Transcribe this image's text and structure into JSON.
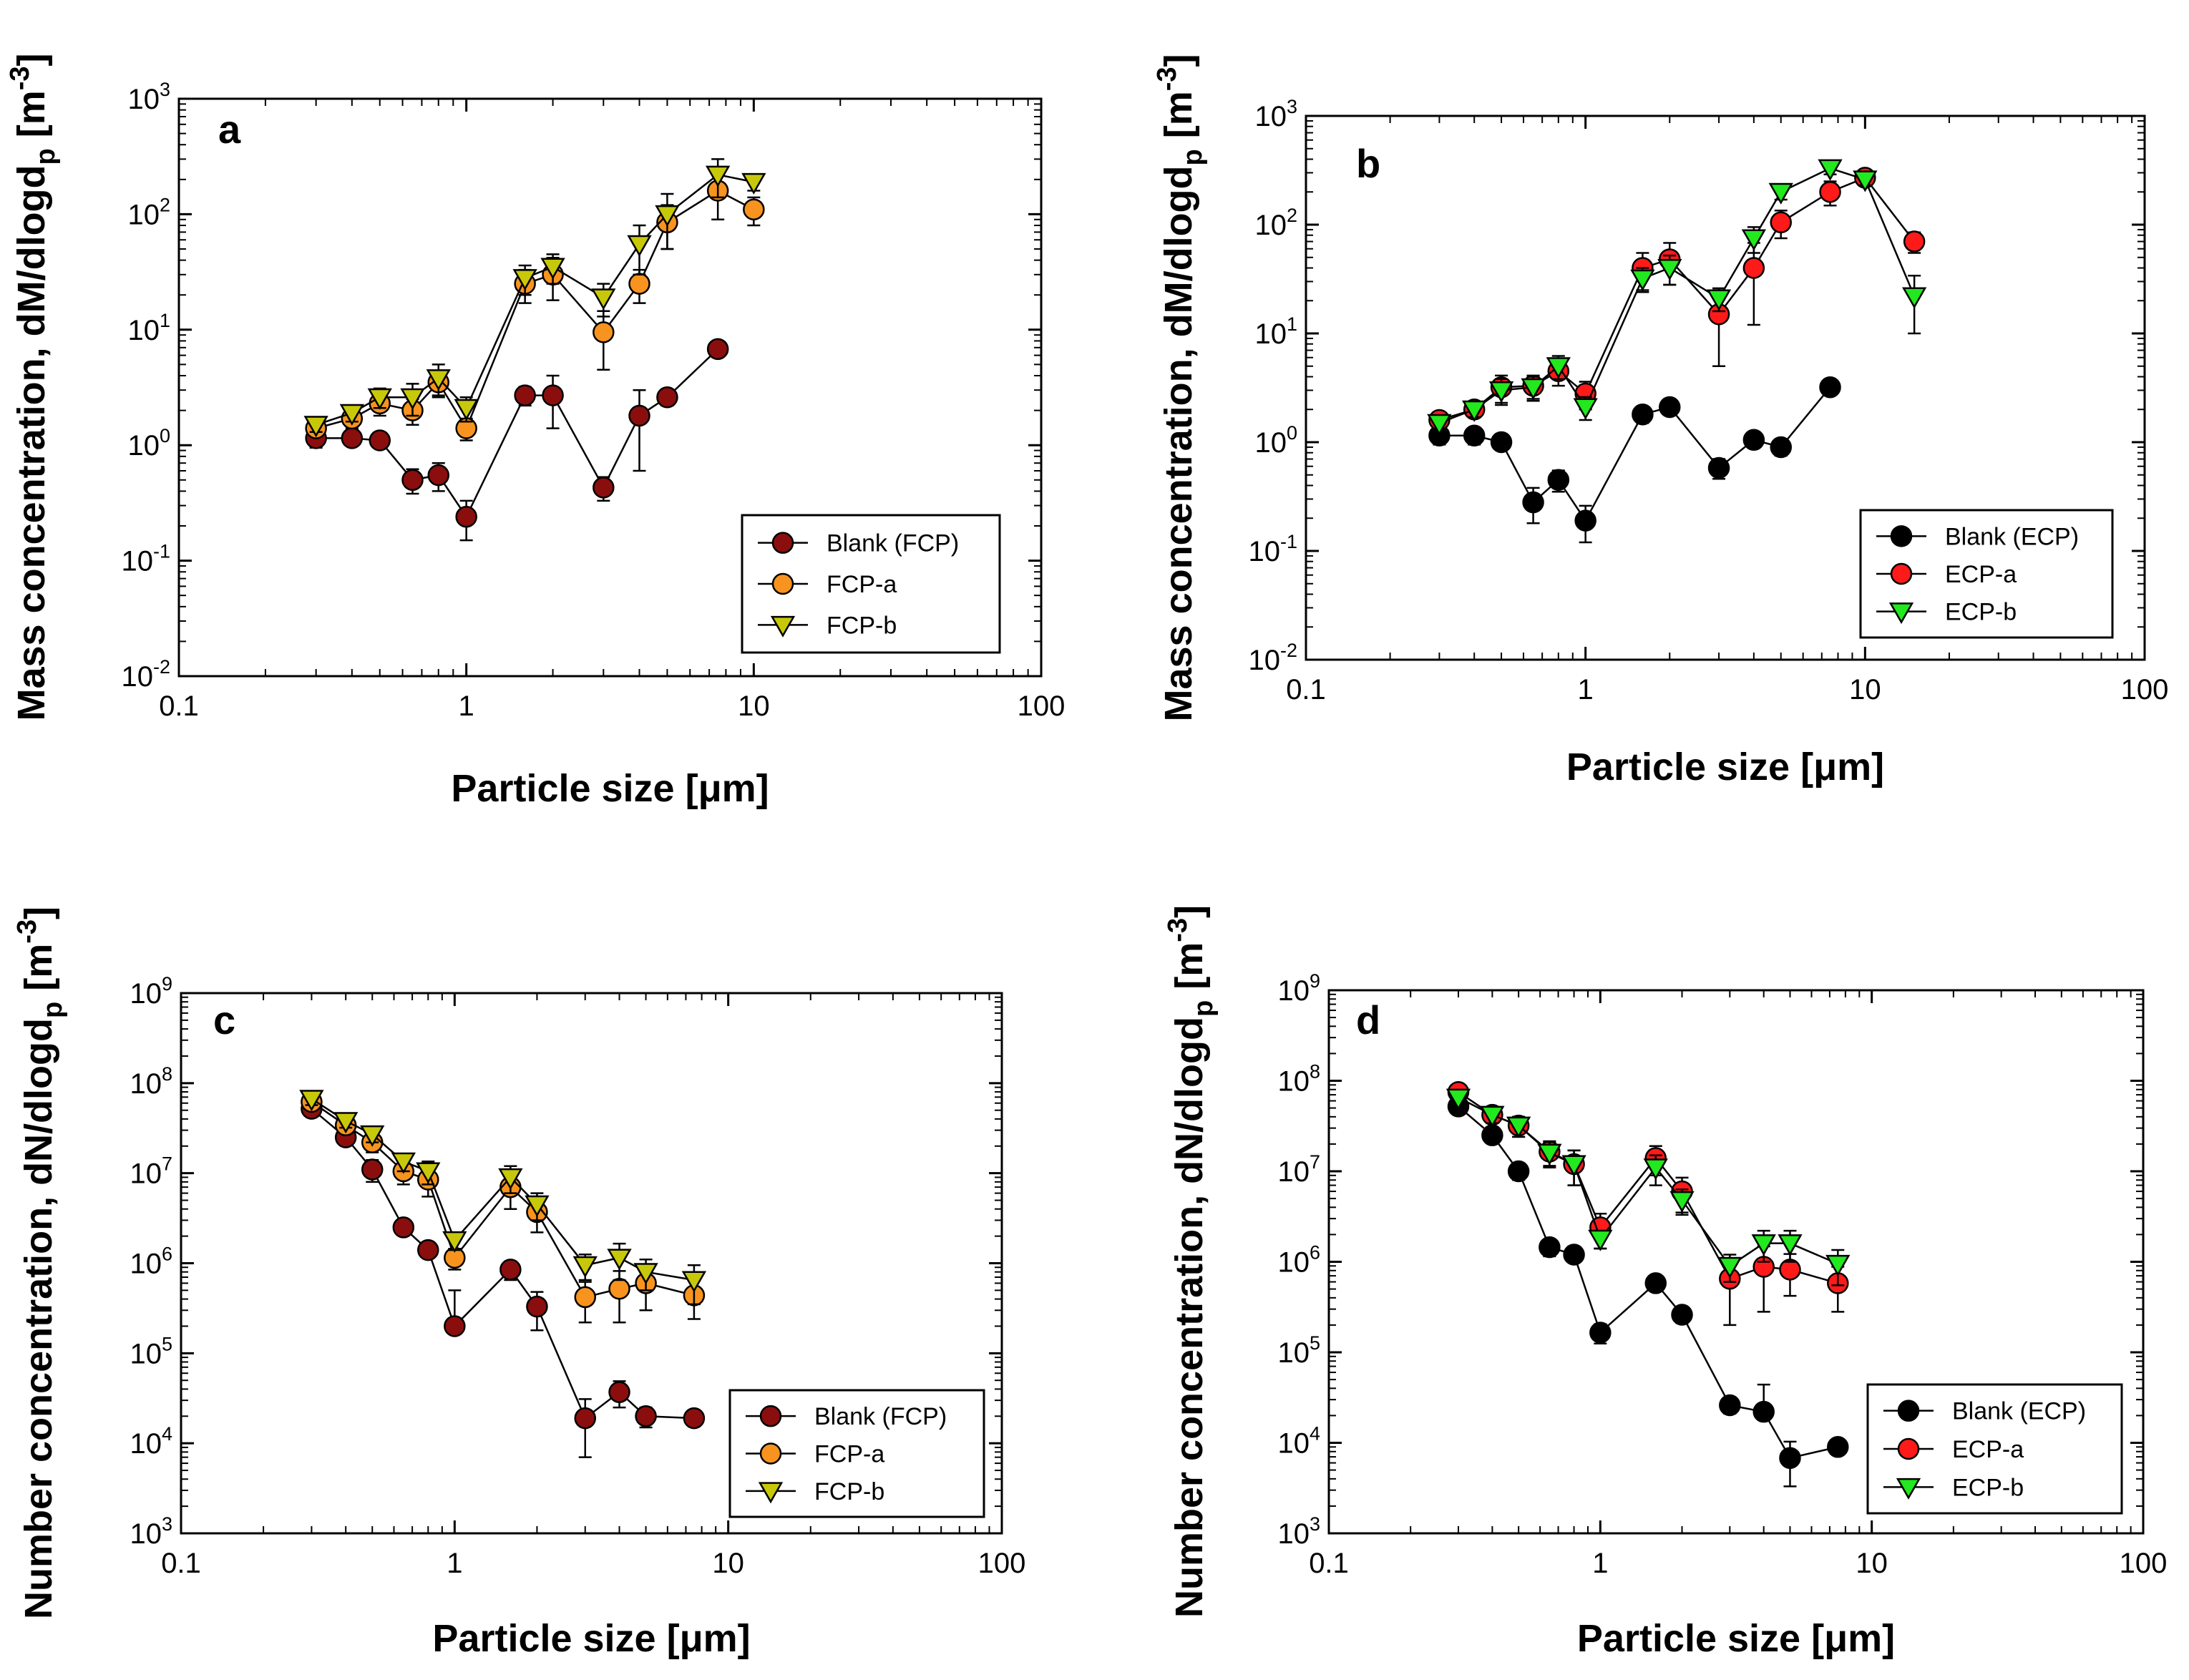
{
  "colors": {
    "blank_fcp": "#8b0e0e",
    "fcp_a": "#f7931e",
    "fcp_b": "#c8c80a",
    "blank_ecp": "#000000",
    "ecp_a": "#ff1a1a",
    "ecp_b": "#22e81e"
  },
  "chart_data": [
    {
      "panel": "a",
      "type": "scatter",
      "xscale": "log",
      "yscale": "log",
      "xlim": [
        0.1,
        100
      ],
      "ylim": [
        0.01,
        1000
      ],
      "xlabel": "Particle size [μm]",
      "ylabel": {
        "prefix": "Mass concentration, dM/dlogd",
        "sub": "p",
        "unit_open": " [m",
        "unit_sup": "-3",
        "unit_close": "]"
      },
      "x_ticks": [
        "0.1",
        "1",
        "10",
        "100"
      ],
      "y_ticks": [
        {
          "base": "10",
          "exp": "-2"
        },
        {
          "base": "10",
          "exp": "-1"
        },
        {
          "base": "10",
          "exp": "0"
        },
        {
          "base": "10",
          "exp": "1"
        },
        {
          "base": "10",
          "exp": "2"
        },
        {
          "base": "10",
          "exp": "3"
        }
      ],
      "legend_position": "bottom-right",
      "series": [
        {
          "name": "Blank (FCP)",
          "marker": "circle",
          "color_key": "blank_fcp",
          "x": [
            0.3,
            0.4,
            0.5,
            0.65,
            0.8,
            1.0,
            1.6,
            2.0,
            3.0,
            4.0,
            5.0,
            7.5
          ],
          "y": [
            1.15,
            1.15,
            1.1,
            0.5,
            0.55,
            0.24,
            2.7,
            2.7,
            0.43,
            1.8,
            2.6,
            6.8
          ],
          "err": [
            0.2,
            0.15,
            0.15,
            0.12,
            0.15,
            0.09,
            0.5,
            1.3,
            0.1,
            1.2,
            0.4,
            1.0
          ]
        },
        {
          "name": "FCP-a",
          "marker": "circle",
          "color_key": "fcp_a",
          "x": [
            0.3,
            0.4,
            0.5,
            0.65,
            0.8,
            1.0,
            1.6,
            2.0,
            3.0,
            4.0,
            5.0,
            7.5,
            10.0
          ],
          "y": [
            1.4,
            1.7,
            2.3,
            2.0,
            3.5,
            1.4,
            25,
            30,
            9.5,
            25,
            85,
            160,
            110
          ],
          "err": [
            0.2,
            0.3,
            0.5,
            0.5,
            0.8,
            0.3,
            8,
            12,
            5,
            8,
            35,
            70,
            30
          ]
        },
        {
          "name": "FCP-b",
          "marker": "triangle-down",
          "color_key": "fcp_b",
          "x": [
            0.3,
            0.4,
            0.5,
            0.65,
            0.8,
            1.0,
            1.6,
            2.0,
            3.0,
            4.0,
            5.0,
            7.5,
            10.0
          ],
          "y": [
            1.5,
            1.9,
            2.6,
            2.6,
            3.8,
            2.1,
            28,
            35,
            19,
            55,
            100,
            220,
            190
          ],
          "err": [
            0.2,
            0.3,
            0.5,
            0.8,
            1.2,
            0.5,
            8,
            10,
            6,
            25,
            50,
            80,
            30
          ]
        }
      ]
    },
    {
      "panel": "b",
      "type": "scatter",
      "xscale": "log",
      "yscale": "log",
      "xlim": [
        0.1,
        100
      ],
      "ylim": [
        0.01,
        1000
      ],
      "xlabel": "Particle size [μm]",
      "ylabel": {
        "prefix": "Mass concentration, dM/dlogd",
        "sub": "p",
        "unit_open": " [m",
        "unit_sup": "-3",
        "unit_close": "]"
      },
      "x_ticks": [
        "0.1",
        "1",
        "10",
        "100"
      ],
      "y_ticks": [
        {
          "base": "10",
          "exp": "-2"
        },
        {
          "base": "10",
          "exp": "-1"
        },
        {
          "base": "10",
          "exp": "0"
        },
        {
          "base": "10",
          "exp": "1"
        },
        {
          "base": "10",
          "exp": "2"
        },
        {
          "base": "10",
          "exp": "3"
        }
      ],
      "legend_position": "bottom-right",
      "series": [
        {
          "name": "Blank (ECP)",
          "marker": "circle",
          "color_key": "blank_ecp",
          "x": [
            0.3,
            0.4,
            0.5,
            0.65,
            0.8,
            1.0,
            1.6,
            2.0,
            3.0,
            4.0,
            5.0,
            7.5
          ],
          "y": [
            1.15,
            1.15,
            1.0,
            0.28,
            0.45,
            0.19,
            1.8,
            2.1,
            0.58,
            1.05,
            0.9,
            3.2
          ],
          "err": [
            0.2,
            0.2,
            0.15,
            0.1,
            0.1,
            0.07,
            0.3,
            0.3,
            0.12,
            0.15,
            0.15,
            0.4
          ]
        },
        {
          "name": "ECP-a",
          "marker": "circle",
          "color_key": "ecp_a",
          "x": [
            0.3,
            0.4,
            0.5,
            0.65,
            0.8,
            1.0,
            1.6,
            2.0,
            3.0,
            4.0,
            5.0,
            7.5,
            10.0,
            15.0
          ],
          "y": [
            1.6,
            2.0,
            3.2,
            3.3,
            4.5,
            2.8,
            40,
            48,
            15,
            40,
            105,
            200,
            270,
            70
          ],
          "err": [
            0.2,
            0.3,
            0.9,
            0.8,
            1.2,
            0.8,
            15,
            20,
            10,
            28,
            30,
            50,
            40,
            15
          ]
        },
        {
          "name": "ECP-b",
          "marker": "triangle-down",
          "color_key": "ecp_b",
          "x": [
            0.3,
            0.4,
            0.5,
            0.65,
            0.8,
            1.0,
            1.6,
            2.0,
            3.0,
            4.0,
            5.0,
            7.5,
            10.0,
            15.0
          ],
          "y": [
            1.5,
            2.0,
            3.0,
            3.2,
            5.0,
            2.1,
            32,
            40,
            21,
            75,
            200,
            330,
            260,
            22
          ],
          "err": [
            0.2,
            0.3,
            0.8,
            0.8,
            1.2,
            0.5,
            8,
            12,
            5,
            20,
            30,
            40,
            30,
            12
          ]
        }
      ]
    },
    {
      "panel": "c",
      "type": "scatter",
      "xscale": "log",
      "yscale": "log",
      "xlim": [
        0.1,
        100
      ],
      "ylim": [
        1000,
        1000000000
      ],
      "xlabel": "Particle size [μm]",
      "ylabel": {
        "prefix": "Number concentration, dN/dlogd",
        "sub": "p",
        "unit_open": " [m",
        "unit_sup": "-3",
        "unit_close": "]"
      },
      "x_ticks": [
        "0.1",
        "1",
        "10",
        "100"
      ],
      "y_ticks": [
        {
          "base": "10",
          "exp": "3"
        },
        {
          "base": "10",
          "exp": "4"
        },
        {
          "base": "10",
          "exp": "5"
        },
        {
          "base": "10",
          "exp": "6"
        },
        {
          "base": "10",
          "exp": "7"
        },
        {
          "base": "10",
          "exp": "8"
        },
        {
          "base": "10",
          "exp": "9"
        }
      ],
      "legend_position": "bottom-right",
      "series": [
        {
          "name": "Blank (FCP)",
          "marker": "circle",
          "color_key": "blank_fcp",
          "x": [
            0.3,
            0.4,
            0.5,
            0.65,
            0.8,
            1.0,
            1.6,
            2.0,
            3.0,
            4.0,
            5.0,
            7.5
          ],
          "y": [
            52000000,
            25000000,
            11000000,
            2500000,
            1400000,
            200000,
            850000,
            330000,
            19000,
            37000,
            20000,
            19000
          ],
          "err": [
            8000000,
            4000000,
            3000000,
            400000,
            200000,
            300000,
            200000,
            150000,
            12000,
            12000,
            5000,
            3000
          ]
        },
        {
          "name": "FCP-a",
          "marker": "circle",
          "color_key": "fcp_a",
          "x": [
            0.3,
            0.4,
            0.5,
            0.65,
            0.8,
            1.0,
            1.6,
            2.0,
            3.0,
            4.0,
            5.0,
            7.5
          ],
          "y": [
            62000000,
            34000000,
            22000000,
            10500000,
            8500000,
            1150000,
            7000000,
            3700000,
            420000,
            520000,
            600000,
            440000
          ],
          "err": [
            10000000,
            6000000,
            5000000,
            3000000,
            3000000,
            300000,
            3000000,
            1500000,
            200000,
            300000,
            300000,
            200000
          ]
        },
        {
          "name": "FCP-b",
          "marker": "triangle-down",
          "color_key": "fcp_b",
          "x": [
            0.3,
            0.4,
            0.5,
            0.65,
            0.8,
            1.0,
            1.6,
            2.0,
            3.0,
            4.0,
            5.0,
            7.5
          ],
          "y": [
            67000000,
            38000000,
            27000000,
            13500000,
            10500000,
            1800000,
            9000000,
            4500000,
            950000,
            1150000,
            800000,
            650000
          ],
          "err": [
            10000000,
            6000000,
            5000000,
            3000000,
            3000000,
            400000,
            3000000,
            1500000,
            300000,
            500000,
            300000,
            300000
          ]
        }
      ]
    },
    {
      "panel": "d",
      "type": "scatter",
      "xscale": "log",
      "yscale": "log",
      "xlim": [
        0.1,
        100
      ],
      "ylim": [
        1000,
        1000000000
      ],
      "xlabel": "Particle size [μm]",
      "ylabel": {
        "prefix": "Number concentration, dN/dlogd",
        "sub": "p",
        "unit_open": " [m",
        "unit_sup": "-3",
        "unit_close": "]"
      },
      "x_ticks": [
        "0.1",
        "1",
        "10",
        "100"
      ],
      "y_ticks": [
        {
          "base": "10",
          "exp": "3"
        },
        {
          "base": "10",
          "exp": "4"
        },
        {
          "base": "10",
          "exp": "5"
        },
        {
          "base": "10",
          "exp": "6"
        },
        {
          "base": "10",
          "exp": "7"
        },
        {
          "base": "10",
          "exp": "8"
        },
        {
          "base": "10",
          "exp": "9"
        }
      ],
      "legend_position": "bottom-right",
      "series": [
        {
          "name": "Blank (ECP)",
          "marker": "circle",
          "color_key": "blank_ecp",
          "x": [
            0.3,
            0.4,
            0.5,
            0.65,
            0.8,
            1.0,
            1.6,
            2.0,
            3.0,
            4.0,
            5.0,
            7.5
          ],
          "y": [
            52000000,
            25000000,
            10000000,
            1450000,
            1200000,
            165000,
            580000,
            260000,
            26000,
            22000,
            6800,
            9000
          ],
          "err": [
            8000000,
            4000000,
            2000000,
            300000,
            200000,
            40000,
            100000,
            50000,
            5000,
            22000,
            3500,
            1500
          ]
        },
        {
          "name": "ECP-a",
          "marker": "circle",
          "color_key": "ecp_a",
          "x": [
            0.3,
            0.4,
            0.5,
            0.65,
            0.8,
            1.0,
            1.6,
            2.0,
            3.0,
            4.0,
            5.0,
            7.5
          ],
          "y": [
            75000000,
            42000000,
            32000000,
            16500000,
            12000000,
            2400000,
            14000000,
            6000000,
            650000,
            880000,
            820000,
            580000
          ],
          "err": [
            10000000,
            8000000,
            8000000,
            5000000,
            5000000,
            1000000,
            5000000,
            2500000,
            450000,
            600000,
            400000,
            300000
          ]
        },
        {
          "name": "ECP-b",
          "marker": "triangle-down",
          "color_key": "ecp_b",
          "x": [
            0.3,
            0.4,
            0.5,
            0.65,
            0.8,
            1.0,
            1.6,
            2.0,
            3.0,
            4.0,
            5.0,
            7.5
          ],
          "y": [
            65000000,
            42000000,
            32000000,
            16000000,
            12000000,
            1800000,
            11000000,
            4800000,
            900000,
            1600000,
            1600000,
            950000
          ],
          "err": [
            10000000,
            8000000,
            8000000,
            5000000,
            5000000,
            400000,
            4000000,
            1500000,
            300000,
            600000,
            600000,
            400000
          ]
        }
      ]
    }
  ]
}
